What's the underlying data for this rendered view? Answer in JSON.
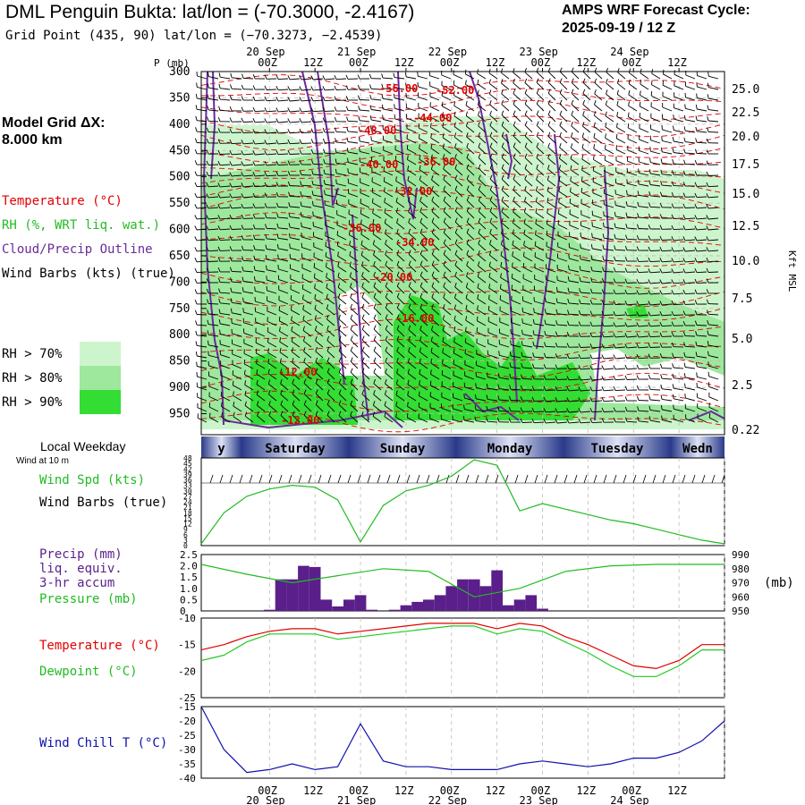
{
  "header": {
    "title": "DML Penguin Bukta:  lat/lon = (-70.3000, -2.4167)",
    "grid_point": "Grid Point (435, 90) lat/lon = (−70.3273, −2.4539)",
    "cycle_line1": "AMPS WRF Forecast Cycle:",
    "cycle_line2": "2025-09-19 / 12  Z"
  },
  "left_panel": {
    "model_grid_line1": "Model Grid ΔX:",
    "model_grid_line2": " 8.000 km",
    "legend": {
      "temperature": "Temperature (°C)",
      "rh": "RH (%, WRT liq. wat.)",
      "cloud": "Cloud/Precip Outline",
      "wind": "Wind Barbs (kts) (true)"
    },
    "rh_legend": [
      {
        "label": "RH > 70%",
        "color": "#cdf5cd"
      },
      {
        "label": "RH > 80%",
        "color": "#9de89d"
      },
      {
        "label": "RH > 90%",
        "color": "#33dd33"
      }
    ]
  },
  "colors": {
    "temperature": "#e00000",
    "rh": "#22bb22",
    "cloud": "#6a2a9a",
    "precip": "#5a1f8a",
    "pressure": "#22bb22",
    "windchill": "#1010aa",
    "dewpoint": "#22cc22"
  },
  "time_axis": {
    "top_dates": [
      "20 Sep",
      "21 Sep",
      "22 Sep",
      "23 Sep",
      "24 Sep"
    ],
    "hours": [
      "00Z",
      "12Z",
      "00Z",
      "12Z",
      "00Z",
      "12Z",
      "00Z",
      "12Z",
      "00Z",
      "12Z"
    ],
    "weekday_label": "Local Weekday",
    "wind_at_label": "Wind at 10 m",
    "weekdays": [
      "y",
      "Saturday",
      "Sunday",
      "Monday",
      "Tuesday",
      "Wedn"
    ]
  },
  "chart_data": [
    {
      "type": "contour",
      "title": "Vertical cross-section",
      "ylabel": "P (mb)",
      "yticks": [
        300,
        350,
        400,
        450,
        500,
        550,
        600,
        650,
        700,
        750,
        800,
        850,
        900,
        950
      ],
      "right_axis_label": "Kft MSL",
      "right_ticks": [
        "25.0",
        "22.5",
        "20.0",
        "17.5",
        "15.0",
        "12.5",
        "10.0",
        "7.5",
        "5.0",
        "2.5",
        "0.22"
      ],
      "temperature_labels": [
        "-56.00",
        "-52.00",
        "-44.00",
        "-48.00",
        "-40.00",
        "-36.00",
        "-32.00",
        "-36.00",
        "-34.00",
        "-20.00",
        "-16.00",
        "-12.00",
        "-12.00"
      ]
    },
    {
      "type": "line",
      "title": "Wind Spd (kts)",
      "label_speed": "Wind Spd (kts)",
      "label_barbs": "Wind Barbs (true)",
      "yticks": [
        0,
        3,
        6,
        9,
        12,
        15,
        18,
        21,
        24,
        27,
        30,
        33,
        36,
        39,
        42,
        45,
        48
      ],
      "ylim": [
        0,
        48
      ],
      "x_hours": [
        -18,
        -12,
        -6,
        0,
        6,
        12,
        18,
        24,
        30,
        36,
        42,
        48,
        54,
        60,
        66,
        72,
        78,
        84,
        90,
        96,
        102,
        108,
        114,
        120
      ],
      "values": [
        1,
        18,
        27,
        31,
        33,
        32,
        25,
        2,
        22,
        30,
        33,
        38,
        47,
        44,
        19,
        23,
        20,
        17,
        14,
        12,
        9,
        6,
        3,
        1
      ]
    },
    {
      "type": "bar",
      "title": "Precip (mm) liq. equiv. 3-hr accum",
      "label_precip1": "Precip (mm)",
      "label_precip2": "liq. equiv.",
      "label_precip3": "3-hr accum",
      "label_pressure": "Pressure (mb)",
      "right_unit": "(mb)",
      "yticks": [
        "0",
        "0.5",
        "1.0",
        "1.5",
        "2.0",
        "2.5"
      ],
      "ylim": [
        0,
        2.5
      ],
      "right_ticks": [
        990,
        980,
        970,
        960,
        950
      ],
      "right_ylim": [
        950,
        990
      ],
      "bar_hours": [
        0,
        3,
        6,
        9,
        12,
        15,
        18,
        21,
        24,
        27,
        30,
        33,
        36,
        39,
        42,
        45,
        48,
        51,
        54,
        57,
        60,
        63,
        66,
        69,
        72
      ],
      "bar_values": [
        0.05,
        1.4,
        1.4,
        2.0,
        1.95,
        0.5,
        0.2,
        0.5,
        0.7,
        0.05,
        0,
        0.05,
        0.25,
        0.4,
        0.5,
        0.7,
        1.1,
        1.4,
        1.4,
        1.1,
        1.8,
        0.25,
        0.5,
        0.7,
        0.1
      ],
      "pressure_hours": [
        -18,
        -6,
        6,
        18,
        30,
        42,
        54,
        66,
        78,
        90,
        102,
        114,
        120
      ],
      "pressure_values": [
        983,
        976,
        970,
        975,
        980,
        978,
        960,
        966,
        978,
        982,
        983,
        983,
        983
      ]
    },
    {
      "type": "line",
      "title": "Temperature / Dewpoint (°C)",
      "label_temp": "Temperature (°C)",
      "label_dew": "Dewpoint (°C)",
      "yticks": [
        -10,
        -15,
        -20,
        -25
      ],
      "ylim": [
        -25,
        -10
      ],
      "x_hours": [
        -18,
        -12,
        -6,
        0,
        6,
        12,
        18,
        24,
        30,
        36,
        42,
        48,
        54,
        60,
        66,
        72,
        78,
        84,
        90,
        96,
        102,
        108,
        114,
        120
      ],
      "temperature": [
        -16,
        -15,
        -13.5,
        -12.5,
        -12,
        -12,
        -13,
        -12.5,
        -12,
        -11.5,
        -11,
        -11,
        -11,
        -12,
        -11,
        -11.5,
        -13.5,
        -15,
        -17,
        -19,
        -19.5,
        -18,
        -15,
        -15
      ],
      "dewpoint": [
        -18,
        -17,
        -14.5,
        -13,
        -13,
        -13,
        -14,
        -13.5,
        -13,
        -12.5,
        -12,
        -11.5,
        -11.5,
        -13,
        -12,
        -12.5,
        -14.5,
        -16.5,
        -19,
        -21,
        -21,
        -19,
        -16,
        -16
      ]
    },
    {
      "type": "line",
      "title": "Wind Chill T (°C)",
      "label": "Wind Chill T (°C)",
      "yticks": [
        -15,
        -20,
        -25,
        -30,
        -35,
        -40
      ],
      "ylim": [
        -40,
        -15
      ],
      "x_hours": [
        -18,
        -12,
        -6,
        0,
        6,
        12,
        18,
        24,
        30,
        36,
        42,
        48,
        54,
        60,
        66,
        72,
        78,
        84,
        90,
        96,
        102,
        108,
        114,
        120
      ],
      "values": [
        -15,
        -30,
        -38,
        -37,
        -35,
        -37,
        -36,
        -21,
        -34,
        -36,
        -36,
        -37,
        -37,
        -37,
        -35,
        -34,
        -35,
        -36,
        -35,
        -33,
        -33,
        -31,
        -27,
        -20
      ]
    }
  ]
}
